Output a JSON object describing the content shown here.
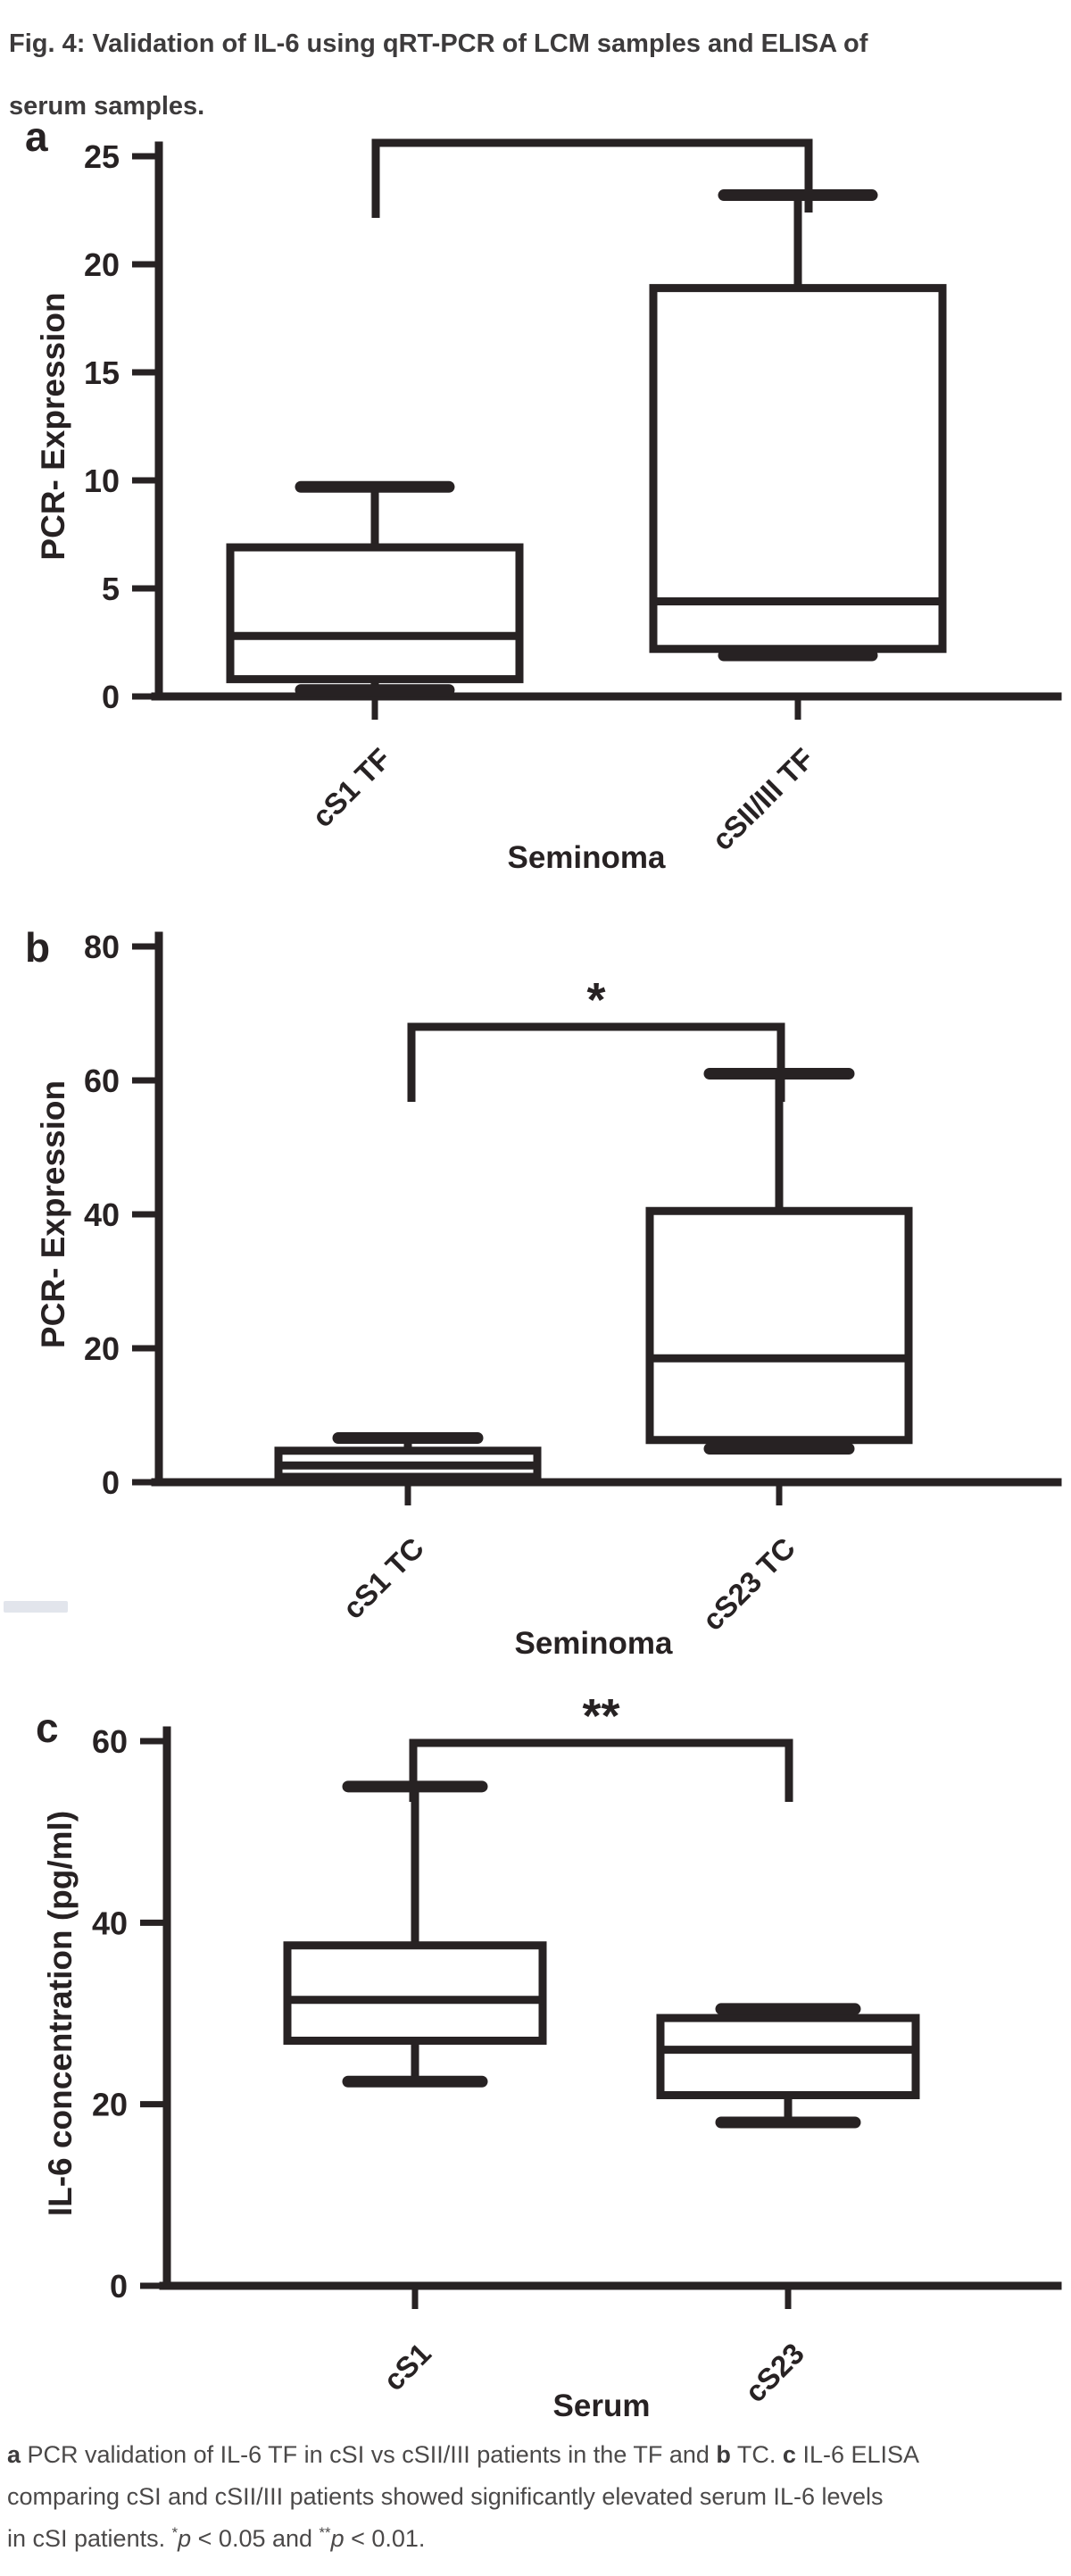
{
  "figure": {
    "title_lines": [
      "Fig. 4: Validation of IL-6 using qRT-PCR of LCM samples and ELISA of",
      "serum samples."
    ],
    "ink_color": "#272223",
    "title_color": "#3d3b3c",
    "caption_color": "#4b4949",
    "caption_lines": [
      [
        {
          "t": "a",
          "b": true
        },
        {
          "t": " PCR validation of IL-6 TF in cSI vs cSII/III patients in the TF and "
        },
        {
          "t": "b",
          "b": true
        },
        {
          "t": " TC. "
        },
        {
          "t": "c",
          "b": true
        },
        {
          "t": " IL-6 ELISA"
        }
      ],
      [
        {
          "t": "comparing cSI and cSII/III patients showed significantly elevated serum IL-6 levels"
        }
      ],
      [
        {
          "t": "in cSI patients. "
        },
        {
          "t": "*",
          "sup": true
        },
        {
          "t": "p",
          "i": true
        },
        {
          "t": " < 0.05 and "
        },
        {
          "t": "**",
          "sup": true
        },
        {
          "t": "p",
          "i": true
        },
        {
          "t": " < 0.01."
        }
      ]
    ]
  },
  "chart_data": [
    {
      "type": "box",
      "panel_label": "a",
      "title": "",
      "xlabel": "Seminoma",
      "ylabel": "PCR- Expression",
      "ylim": [
        0,
        25
      ],
      "yticks": [
        0,
        5,
        10,
        15,
        20,
        25
      ],
      "grid": false,
      "legend": "none",
      "categories": [
        "cS1 TF",
        "cSII/III TF"
      ],
      "boxes": [
        {
          "category": "cS1 TF",
          "min": 0.3,
          "q1": 0.8,
          "median": 2.8,
          "q3": 6.9,
          "max": 9.7
        },
        {
          "category": "cSII/III TF",
          "min": 1.9,
          "q1": 2.2,
          "median": 4.4,
          "q3": 18.9,
          "max": 23.2
        }
      ],
      "significance": {
        "label": "",
        "between": [
          "cS1 TF",
          "cSII/III TF"
        ]
      }
    },
    {
      "type": "box",
      "panel_label": "b",
      "title": "",
      "xlabel": "Seminoma",
      "ylabel": "PCR- Expression",
      "ylim": [
        0,
        80
      ],
      "yticks": [
        0,
        20,
        40,
        60,
        80
      ],
      "grid": false,
      "legend": "none",
      "categories": [
        "cS1 TC",
        "cS23 TC"
      ],
      "boxes": [
        {
          "category": "cS1 TC",
          "min": 0.3,
          "q1": 0.8,
          "median": 2.5,
          "q3": 4.7,
          "max": 6.6
        },
        {
          "category": "cS23 TC",
          "min": 5.0,
          "q1": 6.3,
          "median": 18.5,
          "q3": 40.5,
          "max": 61.0
        }
      ],
      "significance": {
        "label": "*",
        "between": [
          "cS1 TC",
          "cS23 TC"
        ]
      }
    },
    {
      "type": "box",
      "panel_label": "c",
      "title": "",
      "xlabel": "Serum",
      "ylabel": "IL-6 concentration (pg/ml)",
      "ylim": [
        0,
        60
      ],
      "yticks": [
        0,
        20,
        40,
        60
      ],
      "grid": false,
      "legend": "none",
      "categories": [
        "cS1",
        "cS23"
      ],
      "boxes": [
        {
          "category": "cS1",
          "min": 22.5,
          "q1": 27.0,
          "median": 31.5,
          "q3": 37.5,
          "max": 55.0
        },
        {
          "category": "cS23",
          "min": 18.0,
          "q1": 21.0,
          "median": 26.0,
          "q3": 29.5,
          "max": 30.5
        }
      ],
      "significance": {
        "label": "**",
        "between": [
          "cS1",
          "cS23"
        ]
      }
    }
  ]
}
